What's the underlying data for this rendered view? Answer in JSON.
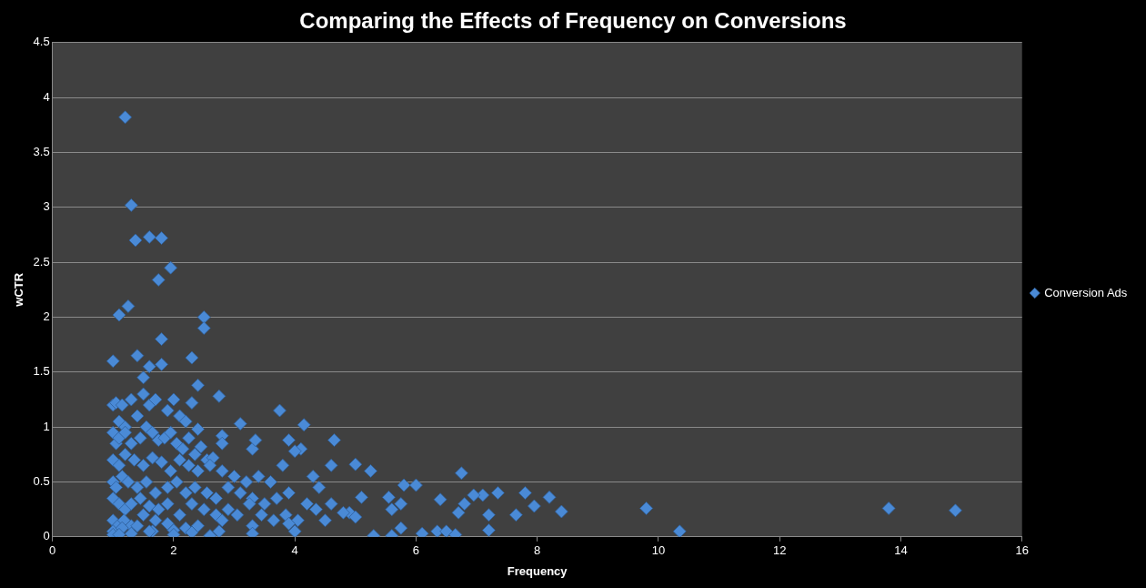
{
  "chart_data": {
    "type": "scatter",
    "title": "Comparing the Effects of Frequency on Conversions",
    "xlabel": "Frequency",
    "ylabel": "wCTR",
    "xlim": [
      0,
      16
    ],
    "xticks": [
      0,
      2,
      4,
      6,
      8,
      10,
      12,
      14,
      16
    ],
    "ylim": [
      0,
      4.5
    ],
    "yticks": [
      0,
      0.5,
      1,
      1.5,
      2,
      2.5,
      3,
      3.5,
      4,
      4.5
    ],
    "grid": "y",
    "legend": "right",
    "marker": "diamond",
    "series": [
      {
        "name": "Conversion Ads",
        "color": "#4a8ad6",
        "x": [
          1.2,
          1.3,
          1.37,
          1.6,
          1.8,
          1.75,
          1.95,
          1.25,
          1.1,
          2.5,
          2.5,
          1.8,
          1.0,
          1.8,
          2.3,
          1.4,
          1.5,
          1.6,
          2.4,
          2.75,
          3.75,
          4.15,
          3.1,
          4.65,
          3.9,
          6.75,
          5.0,
          5.25,
          5.8,
          6.0,
          4.6,
          7.1,
          7.35,
          7.8,
          8.2,
          7.95,
          8.4,
          7.65,
          7.2,
          7.2,
          6.4,
          6.35,
          6.5,
          6.65,
          6.1,
          5.3,
          5.6,
          5.75,
          5.6,
          5.75,
          5.55,
          6.7,
          6.8,
          6.95,
          9.8,
          10.35,
          13.8,
          14.9,
          4.0,
          4.5,
          4.9,
          5.0,
          5.1,
          4.8,
          4.4,
          4.3,
          4.1,
          4.0,
          3.8,
          3.3,
          3.35,
          2.8,
          2.8,
          2.4,
          2.3,
          1.0,
          1.05,
          1.1,
          1.15,
          1.2,
          1.3,
          1.4,
          1.5,
          1.6,
          1.7,
          1.9,
          2.0,
          2.1,
          2.2,
          1.0,
          1.05,
          1.1,
          1.2,
          1.3,
          1.45,
          1.55,
          1.65,
          1.75,
          1.85,
          1.95,
          2.05,
          2.15,
          2.25,
          2.35,
          2.45,
          2.55,
          2.65,
          1.0,
          1.1,
          1.2,
          1.35,
          1.5,
          1.65,
          1.8,
          1.95,
          2.1,
          2.25,
          2.4,
          2.6,
          2.8,
          3.0,
          3.2,
          3.4,
          3.6,
          1.0,
          1.05,
          1.15,
          1.25,
          1.4,
          1.55,
          1.7,
          1.9,
          2.05,
          2.2,
          2.35,
          2.55,
          2.7,
          2.9,
          3.1,
          3.3,
          3.5,
          3.7,
          3.9,
          4.2,
          1.0,
          1.1,
          1.2,
          1.3,
          1.45,
          1.6,
          1.75,
          1.9,
          2.1,
          2.3,
          2.5,
          2.7,
          2.9,
          3.05,
          3.25,
          3.45,
          3.65,
          3.85,
          4.05,
          4.35,
          4.6,
          1.0,
          1.08,
          1.18,
          1.3,
          1.5,
          1.7,
          1.9,
          2.2,
          2.4,
          2.8,
          3.3,
          3.9,
          1.0,
          1.15,
          1.4,
          1.65,
          2.0,
          2.3,
          2.75,
          3.3,
          1.0,
          1.1,
          1.3,
          1.6,
          2.0,
          2.6
        ],
        "values": [
          3.82,
          3.02,
          2.7,
          2.73,
          2.72,
          2.34,
          2.45,
          2.1,
          2.02,
          2.0,
          1.9,
          1.8,
          1.6,
          1.57,
          1.63,
          1.65,
          1.45,
          1.55,
          1.38,
          1.28,
          1.15,
          1.02,
          1.03,
          0.88,
          0.88,
          0.58,
          0.66,
          0.6,
          0.47,
          0.47,
          0.65,
          0.38,
          0.4,
          0.4,
          0.36,
          0.28,
          0.23,
          0.2,
          0.2,
          0.06,
          0.34,
          0.05,
          0.05,
          0.02,
          0.03,
          0.01,
          0.01,
          0.08,
          0.25,
          0.3,
          0.36,
          0.22,
          0.3,
          0.38,
          0.26,
          0.05,
          0.26,
          0.24,
          0.05,
          0.15,
          0.22,
          0.18,
          0.36,
          0.22,
          0.45,
          0.55,
          0.8,
          0.78,
          0.65,
          0.8,
          0.88,
          0.92,
          0.85,
          0.98,
          1.22,
          1.2,
          1.22,
          1.05,
          1.2,
          1.0,
          1.25,
          1.1,
          1.3,
          1.2,
          1.25,
          1.15,
          1.25,
          1.1,
          1.05,
          0.95,
          0.85,
          0.9,
          0.95,
          0.85,
          0.9,
          1.0,
          0.95,
          0.88,
          0.9,
          0.95,
          0.85,
          0.8,
          0.9,
          0.75,
          0.82,
          0.7,
          0.72,
          0.7,
          0.65,
          0.75,
          0.7,
          0.65,
          0.72,
          0.68,
          0.6,
          0.7,
          0.65,
          0.6,
          0.65,
          0.6,
          0.55,
          0.5,
          0.55,
          0.5,
          0.5,
          0.45,
          0.55,
          0.5,
          0.45,
          0.5,
          0.4,
          0.45,
          0.5,
          0.4,
          0.45,
          0.4,
          0.35,
          0.45,
          0.4,
          0.35,
          0.3,
          0.35,
          0.4,
          0.3,
          0.35,
          0.3,
          0.25,
          0.3,
          0.35,
          0.28,
          0.25,
          0.3,
          0.2,
          0.3,
          0.25,
          0.2,
          0.25,
          0.2,
          0.3,
          0.2,
          0.15,
          0.2,
          0.15,
          0.25,
          0.3,
          0.15,
          0.1,
          0.15,
          0.1,
          0.2,
          0.15,
          0.12,
          0.08,
          0.1,
          0.15,
          0.1,
          0.12,
          0.05,
          0.08,
          0.1,
          0.05,
          0.06,
          0.04,
          0.05,
          0.03,
          0.02,
          0.02,
          0.03,
          0.05,
          0.02,
          0.01
        ]
      }
    ]
  }
}
